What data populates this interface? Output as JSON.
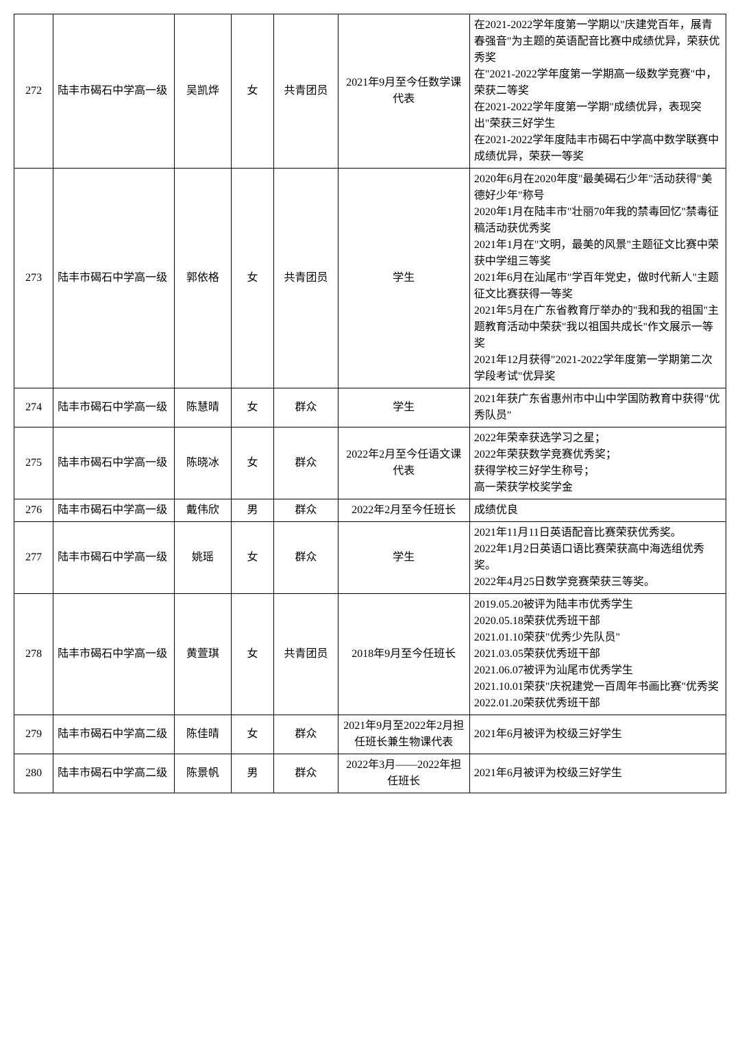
{
  "table": {
    "background_color": "#ffffff",
    "border_color": "#000000",
    "text_color": "#000000",
    "font_size": 16,
    "rows": [
      {
        "idx": "272",
        "school": "陆丰市碣石中学高一级",
        "name": "吴凯烨",
        "gender": "女",
        "affil": "共青团员",
        "role": "2021年9月至今任数学课代表",
        "awards": "在2021-2022学年度第一学期以\"庆建党百年，展青春强音\"为主题的英语配音比赛中成绩优异，荣获优秀奖\n在\"2021-2022学年度第一学期高一级数学竞赛\"中，荣获二等奖\n在2021-2022学年度第一学期\"成绩优异，表现突出\"荣获三好学生\n在2021-2022学年度陆丰市碣石中学高中数学联赛中成绩优异，荣获一等奖"
      },
      {
        "idx": "273",
        "school": "陆丰市碣石中学高一级",
        "name": "郭依格",
        "gender": "女",
        "affil": "共青团员",
        "role": "学生",
        "awards": "2020年6月在2020年度\"最美碣石少年\"活动获得\"美德好少年\"称号\n2020年1月在陆丰市\"壮丽70年我的禁毒回忆\"禁毒征稿活动获优秀奖\n2021年1月在\"文明，最美的风景\"主题征文比赛中荣获中学组三等奖\n2021年6月在汕尾市\"学百年党史，做时代新人\"主题征文比赛获得一等奖\n2021年5月在广东省教育厅举办的\"我和我的祖国\"主题教育活动中荣获\"我以祖国共成长\"作文展示一等奖\n2021年12月获得\"2021-2022学年度第一学期第二次学段考试\"优异奖"
      },
      {
        "idx": "274",
        "school": "陆丰市碣石中学高一级",
        "name": "陈慧晴",
        "gender": "女",
        "affil": "群众",
        "role": "学生",
        "awards": "2021年获广东省惠州市中山中学国防教育中获得\"优秀队员\""
      },
      {
        "idx": "275",
        "school": "陆丰市碣石中学高一级",
        "name": "陈晓冰",
        "gender": "女",
        "affil": "群众",
        "role": "2022年2月至今任语文课代表",
        "awards": "2022年荣幸获选学习之星；\n2022年荣获数学竞赛优秀奖；\n获得学校三好学生称号；\n高一荣获学校奖学金"
      },
      {
        "idx": "276",
        "school": "陆丰市碣石中学高一级",
        "name": "戴伟欣",
        "gender": "男",
        "affil": "群众",
        "role": "2022年2月至今任班长",
        "awards": "成绩优良"
      },
      {
        "idx": "277",
        "school": "陆丰市碣石中学高一级",
        "name": "姚瑶",
        "gender": "女",
        "affil": "群众",
        "role": "学生",
        "awards": "2021年11月11日英语配音比赛荣获优秀奖。\n2022年1月2日英语口语比赛荣获高中海选组优秀奖。\n2022年4月25日数学竞赛荣获三等奖。"
      },
      {
        "idx": "278",
        "school": "陆丰市碣石中学高一级",
        "name": "黄萱琪",
        "gender": "女",
        "affil": "共青团员",
        "role": "2018年9月至今任班长",
        "awards": "2019.05.20被评为陆丰市优秀学生\n2020.05.18荣获优秀班干部\n2021.01.10荣获\"优秀少先队员\"\n2021.03.05荣获优秀班干部\n2021.06.07被评为汕尾市优秀学生\n2021.10.01荣获\"庆祝建党一百周年书画比赛\"优秀奖\n2022.01.20荣获优秀班干部"
      },
      {
        "idx": "279",
        "school": "陆丰市碣石中学高二级",
        "name": "陈佳晴",
        "gender": "女",
        "affil": "群众",
        "role": "2021年9月至2022年2月担任班长兼生物课代表",
        "awards": "2021年6月被评为校级三好学生"
      },
      {
        "idx": "280",
        "school": "陆丰市碣石中学高二级",
        "name": "陈景帆",
        "gender": "男",
        "affil": "群众",
        "role": "2022年3月——2022年担任班长",
        "awards": "2021年6月被评为校级三好学生"
      }
    ]
  }
}
